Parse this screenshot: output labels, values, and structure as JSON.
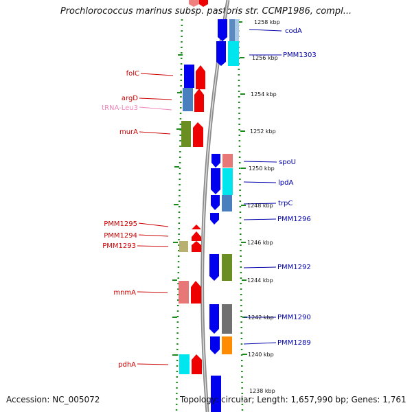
{
  "title": "Prochlorococcus marinus subsp. pastoris str. CCMP1986, compl...",
  "footer": {
    "accession": "Accession: NC_005072",
    "topology": "Topology: circular; Length: 1,657,990 bp; Genes: 1,761"
  },
  "scale_labels": [
    "1258 kbp",
    "1256 kbp",
    "1254 kbp",
    "1252 kbp",
    "1250 kbp",
    "1248 kbp",
    "1246 kbp",
    "1244 kbp",
    "1242 kbp",
    "1240 kbp",
    "1238 kbp"
  ],
  "colors": {
    "left_label": "#cc0000",
    "right_label": "#0000aa",
    "trna_label": "#ee88bb"
  },
  "left_labels": [
    "folC",
    "argD",
    "tRNA-Leu3",
    "murA",
    "PMM1295",
    "PMM1294",
    "PMM1293",
    "mnmA",
    "pdhA"
  ],
  "right_labels": [
    "codA",
    "PMM1303",
    "spoU",
    "lpdA",
    "trpC",
    "PMM1296",
    "PMM1292",
    "PMM1290",
    "PMM1289"
  ]
}
